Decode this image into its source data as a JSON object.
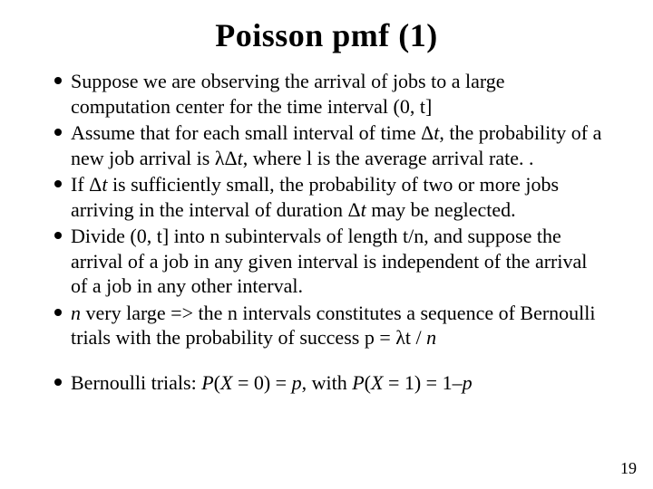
{
  "title": "Poisson pmf (1)",
  "bullets": [
    {
      "html": "Suppose we are observing the arrival of jobs to a large computation center for the time interval (0, t]"
    },
    {
      "html": "Assume that for each small interval of time Δ<span class=\"ital\">t</span>, the probability of a new job arrival is λΔ<span class=\"ital\">t</span>, where l is the average arrival rate. ."
    },
    {
      "html": "If Δ<span class=\"ital\">t</span> is sufficiently small, the probability of two or more jobs arriving in the interval of duration Δ<span class=\"ital\">t</span> may be neglected."
    },
    {
      "html": "Divide (0, t] into n subintervals of length t/n, and suppose the arrival of a job in any given interval is independent of the arrival of a job in any other interval."
    },
    {
      "html": "<span class=\"ital\">n</span> very large =&gt; the n intervals constitutes a sequence of Bernoulli trials with the probability of success p = λt / <span class=\"ital\">n</span>"
    },
    {
      "html": "Bernoulli trials: <span class=\"ital\">P</span>(<span class=\"ital\">X</span> = 0) = <span class=\"ital\">p</span>, with  <span class=\"ital\">P</span>(<span class=\"ital\">X</span> = 1) = 1–<span class=\"ital\">p</span>",
      "spaced": true
    }
  ],
  "pageNumber": "19",
  "colors": {
    "background": "#ffffff",
    "text": "#000000",
    "bullet": "#000000"
  },
  "typography": {
    "title_fontsize": 36,
    "body_fontsize": 22,
    "pagenum_fontsize": 18,
    "font_family": "Times New Roman"
  }
}
